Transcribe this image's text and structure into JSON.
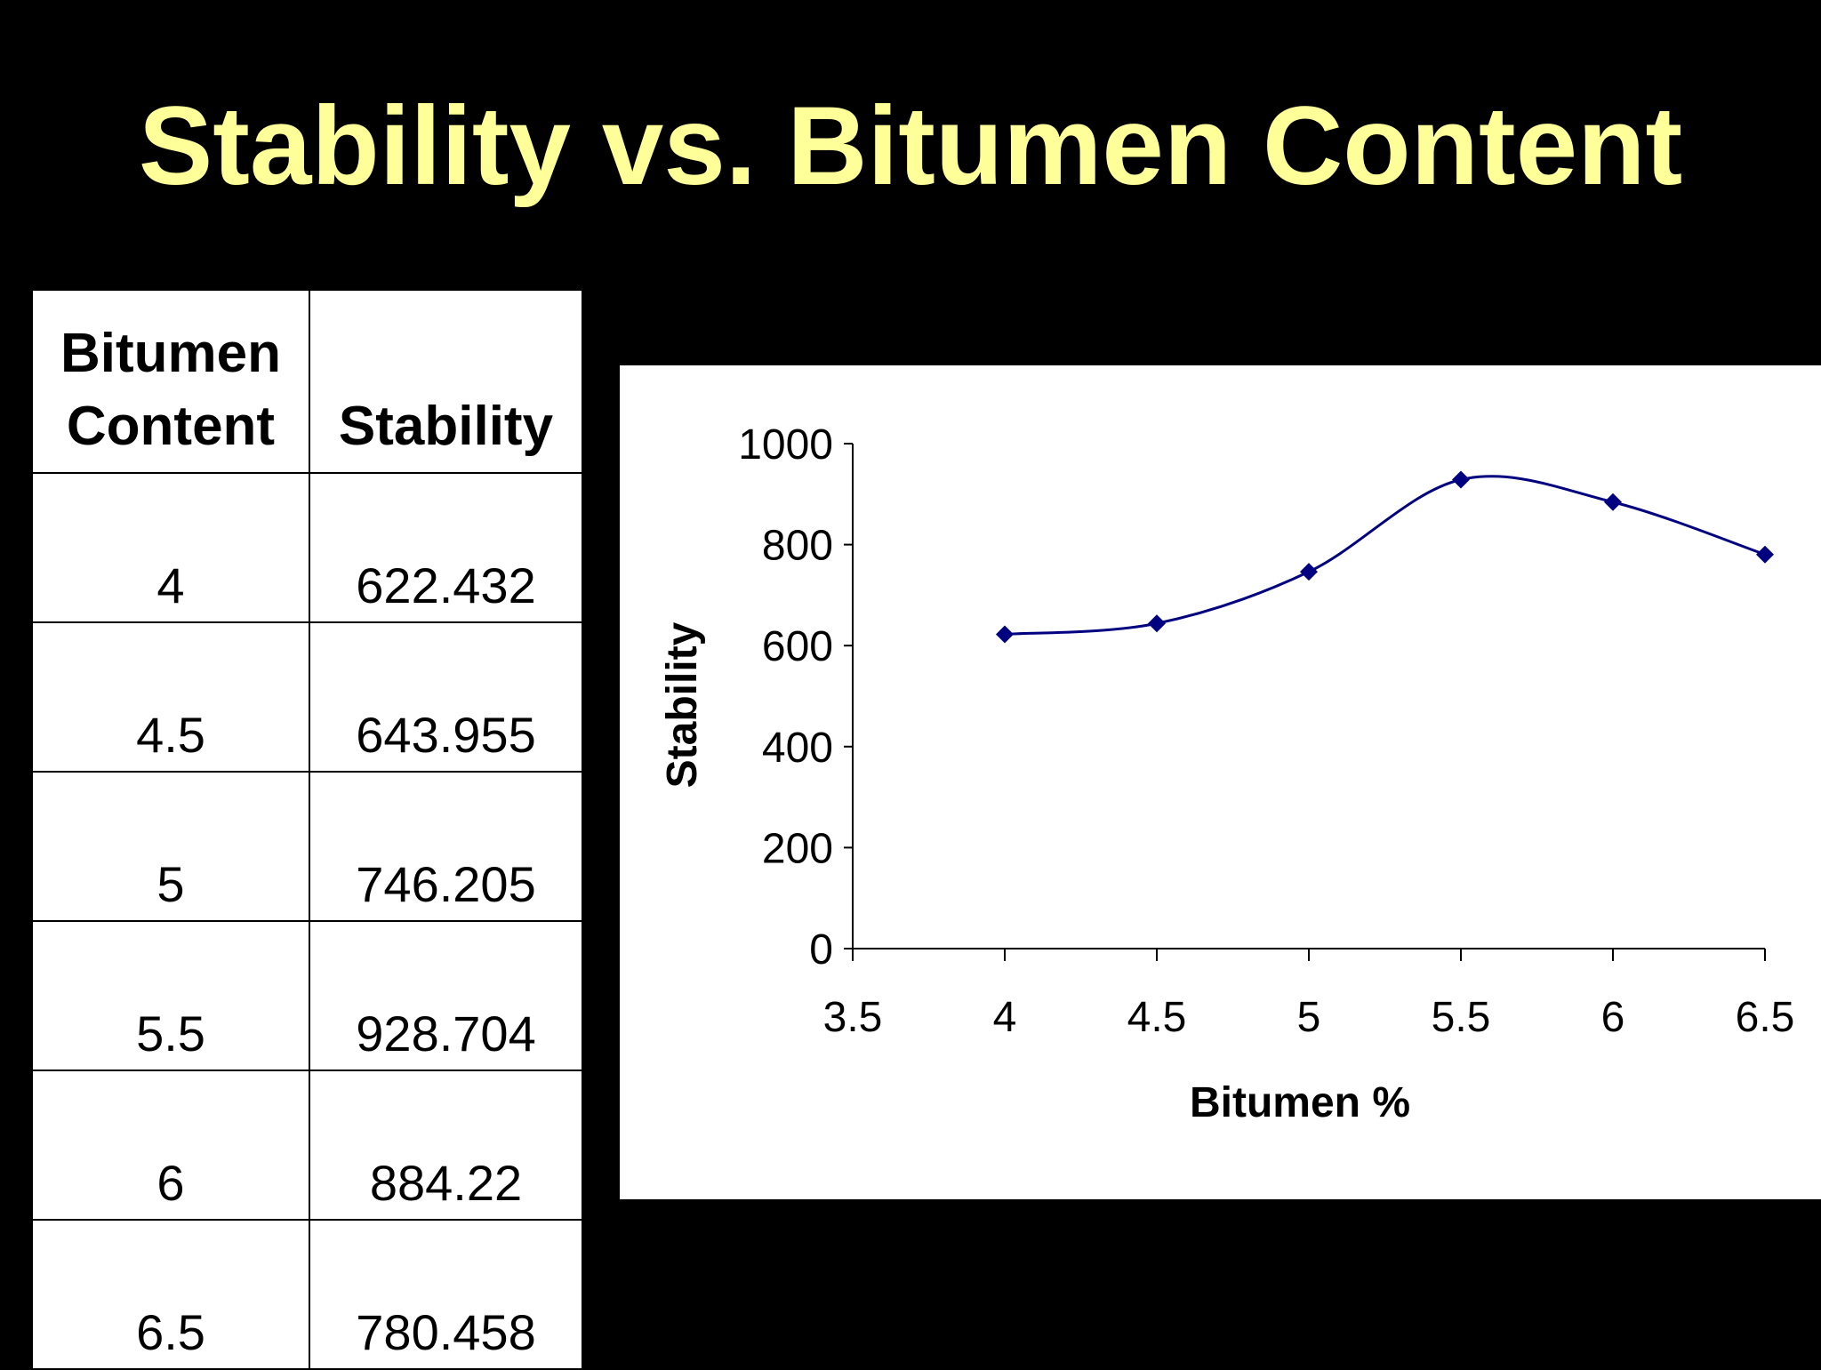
{
  "slide": {
    "title": "Stability vs. Bitumen Content"
  },
  "table": {
    "headers": [
      "Bitumen Content",
      "Stability"
    ],
    "rows": [
      [
        "4",
        "622.432"
      ],
      [
        "4.5",
        "643.955"
      ],
      [
        "5",
        "746.205"
      ],
      [
        "5.5",
        "928.704"
      ],
      [
        "6",
        "884.22"
      ],
      [
        "6.5",
        "780.458"
      ]
    ]
  },
  "chart_data": {
    "type": "scatter",
    "smoothed_line": true,
    "x": [
      4,
      4.5,
      5,
      5.5,
      6,
      6.5
    ],
    "y": [
      622.432,
      643.955,
      746.205,
      928.704,
      884.22,
      780.458
    ],
    "xlabel": "Bitumen %",
    "ylabel": "Stability",
    "xlim": [
      3.5,
      6.5
    ],
    "ylim": [
      0,
      1000
    ],
    "x_ticks": [
      "3.5",
      "4",
      "4.5",
      "5",
      "5.5",
      "6",
      "6.5"
    ],
    "y_ticks": [
      "0",
      "200",
      "400",
      "600",
      "800",
      "1000"
    ],
    "grid": false,
    "legend": "none",
    "marker": "diamond",
    "color": "#000080"
  }
}
